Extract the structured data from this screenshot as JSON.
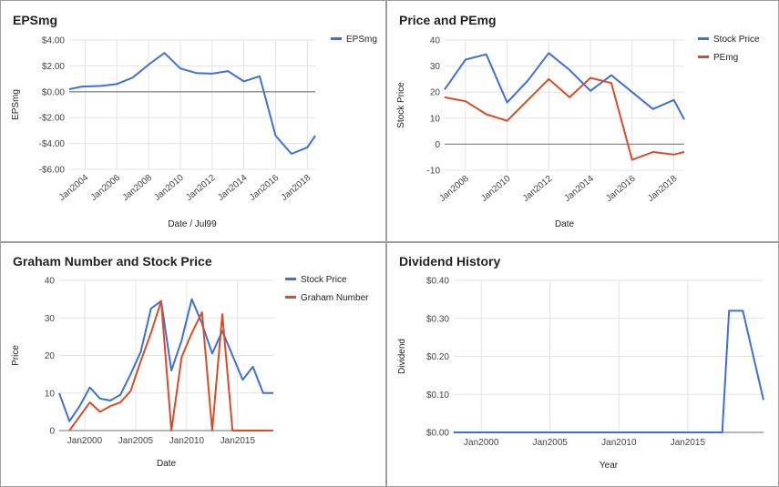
{
  "chart_data": [
    {
      "type": "line",
      "title": "EPSmg",
      "xlabel": "Date / Jul99",
      "ylabel": "EPSmg",
      "ylim": [
        -6,
        4
      ],
      "yticks": [
        {
          "v": 4,
          "label": "$4.00"
        },
        {
          "v": 2,
          "label": "$2.00"
        },
        {
          "v": 0,
          "label": "$0.00"
        },
        {
          "v": -2,
          "label": "-$2.00"
        },
        {
          "v": -4,
          "label": "-$4.00"
        },
        {
          "v": -6,
          "label": "-$6.00"
        }
      ],
      "xlim": [
        2003,
        2018.5
      ],
      "xticks": [
        {
          "v": 2004,
          "label": "Jan2004"
        },
        {
          "v": 2006,
          "label": "Jan2006"
        },
        {
          "v": 2008,
          "label": "Jan2008"
        },
        {
          "v": 2010,
          "label": "Jan2010"
        },
        {
          "v": 2012,
          "label": "Jan2012"
        },
        {
          "v": 2014,
          "label": "Jan2014"
        },
        {
          "v": 2016,
          "label": "Jan2016"
        },
        {
          "v": 2018,
          "label": "Jan2018"
        }
      ],
      "x_tick_rotate": true,
      "zero_line": true,
      "series": [
        {
          "name": "EPSmg",
          "color": "#3f6fd8",
          "x": [
            2003,
            2003.8,
            2005,
            2006,
            2007,
            2008,
            2009,
            2010,
            2011,
            2012,
            2013,
            2014,
            2015,
            2016,
            2017,
            2018,
            2018.5
          ],
          "y": [
            0.2,
            0.4,
            0.45,
            0.6,
            1.1,
            2.1,
            3.0,
            1.8,
            1.45,
            1.4,
            1.6,
            0.8,
            1.2,
            -3.4,
            -4.8,
            -4.3,
            -3.4
          ]
        }
      ],
      "legend": "right"
    },
    {
      "type": "line",
      "title": "Price and PEmg",
      "xlabel": "Date",
      "ylabel": "Stock Price",
      "ylim": [
        -10,
        40
      ],
      "yticks": [
        {
          "v": 40,
          "label": "40"
        },
        {
          "v": 30,
          "label": "30"
        },
        {
          "v": 20,
          "label": "20"
        },
        {
          "v": 10,
          "label": "10"
        },
        {
          "v": 0,
          "label": "0"
        },
        {
          "v": -10,
          "label": "-10"
        }
      ],
      "xlim": [
        2007,
        2018.5
      ],
      "xticks": [
        {
          "v": 2008,
          "label": "Jan2008"
        },
        {
          "v": 2010,
          "label": "Jan2010"
        },
        {
          "v": 2012,
          "label": "Jan2012"
        },
        {
          "v": 2014,
          "label": "Jan2014"
        },
        {
          "v": 2016,
          "label": "Jan2016"
        },
        {
          "v": 2018,
          "label": "Jan2018"
        }
      ],
      "x_tick_rotate": true,
      "zero_line": true,
      "series": [
        {
          "name": "Stock Price",
          "color": "#3f6fd8",
          "x": [
            2007,
            2008,
            2009,
            2010,
            2011,
            2012,
            2013,
            2014,
            2015,
            2016,
            2017,
            2018,
            2018.5
          ],
          "y": [
            21,
            32.5,
            34.5,
            16,
            24.5,
            35,
            28.5,
            20.5,
            26.5,
            20,
            13.5,
            17,
            9.5
          ]
        },
        {
          "name": "PEmg",
          "color": "#db4b28",
          "x": [
            2007,
            2008,
            2009,
            2010,
            2011,
            2012,
            2013,
            2014,
            2015,
            2016,
            2017,
            2018,
            2018.5
          ],
          "y": [
            18,
            16.5,
            11.5,
            9,
            17,
            25,
            18,
            25.5,
            23.5,
            -6,
            -3,
            -4,
            -3
          ]
        }
      ],
      "legend": "right"
    },
    {
      "type": "line",
      "title": "Graham Number and Stock Price",
      "xlabel": "Date",
      "ylabel": "Price",
      "ylim": [
        0,
        40
      ],
      "yticks": [
        {
          "v": 40,
          "label": "40"
        },
        {
          "v": 30,
          "label": "30"
        },
        {
          "v": 20,
          "label": "20"
        },
        {
          "v": 10,
          "label": "10"
        },
        {
          "v": 0,
          "label": "0"
        }
      ],
      "xlim": [
        1997.5,
        2018.5
      ],
      "xticks": [
        {
          "v": 2000,
          "label": "Jan2000"
        },
        {
          "v": 2005,
          "label": "Jan2005"
        },
        {
          "v": 2010,
          "label": "Jan2010"
        },
        {
          "v": 2015,
          "label": "Jan2015"
        }
      ],
      "x_tick_rotate": false,
      "zero_line": false,
      "series": [
        {
          "name": "Stock Price",
          "color": "#3f6fd8",
          "x": [
            1997.5,
            1998.5,
            1999.5,
            2000.5,
            2001.5,
            2002.5,
            2003.5,
            2004.5,
            2005.5,
            2006.5,
            2007.5,
            2008.5,
            2009.5,
            2010.5,
            2011.5,
            2012.5,
            2013.5,
            2014.5,
            2015.5,
            2016.5,
            2017.5,
            2018.5
          ],
          "y": [
            10,
            2.5,
            6.5,
            11.5,
            8.5,
            8,
            9.5,
            15,
            21,
            32.5,
            34.5,
            16,
            24,
            35,
            28.5,
            20.5,
            26.5,
            20,
            13.5,
            17,
            10,
            10
          ]
        },
        {
          "name": "Graham Number",
          "color": "#db4b28",
          "x": [
            1998.5,
            2000.5,
            2001.5,
            2002.5,
            2003.5,
            2004.5,
            2005.5,
            2006.5,
            2007.5,
            2008.5,
            2009.5,
            2010.5,
            2011.5,
            2012.5,
            2013.5,
            2014.5,
            2015.5,
            2016.5,
            2017.5,
            2018.5
          ],
          "y": [
            0,
            7.5,
            5,
            6.5,
            7.5,
            10.5,
            18.5,
            26,
            34.5,
            0,
            19.5,
            26,
            31.5,
            0,
            31,
            0,
            0,
            0,
            0,
            0
          ]
        }
      ],
      "legend": "right"
    },
    {
      "type": "line",
      "title": "Dividend History",
      "xlabel": "Year",
      "ylabel": "Dividend",
      "ylim": [
        0,
        0.4
      ],
      "yticks": [
        {
          "v": 0.4,
          "label": "$0.40"
        },
        {
          "v": 0.3,
          "label": "$0.30"
        },
        {
          "v": 0.2,
          "label": "$0.20"
        },
        {
          "v": 0.1,
          "label": "$0.10"
        },
        {
          "v": 0.0,
          "label": "$0.00"
        }
      ],
      "xlim": [
        1998,
        2020.5
      ],
      "xticks": [
        {
          "v": 2000,
          "label": "Jan2000"
        },
        {
          "v": 2005,
          "label": "Jan2005"
        },
        {
          "v": 2010,
          "label": "Jan2010"
        },
        {
          "v": 2015,
          "label": "Jan2015"
        }
      ],
      "x_tick_rotate": false,
      "zero_line": false,
      "series": [
        {
          "name": "",
          "color": "#3f6fd8",
          "x": [
            1998,
            2015,
            2017,
            2017.5,
            2018,
            2019,
            2020.5
          ],
          "y": [
            0,
            0,
            0,
            0,
            0.32,
            0.32,
            0.085
          ]
        }
      ],
      "legend": "none"
    }
  ]
}
